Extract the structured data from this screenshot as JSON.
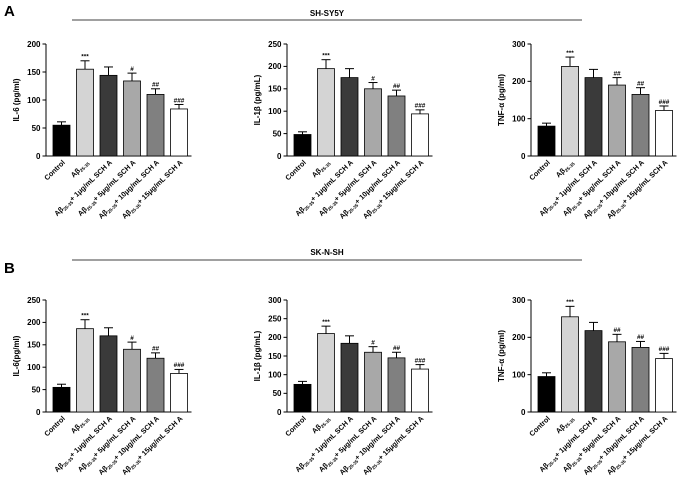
{
  "panel_labels": [
    "A",
    "B"
  ],
  "group_titles": [
    "SH-SY5Y",
    "SK-N-SH"
  ],
  "category_parts": [
    {
      "main": "Control",
      "sub": "",
      "tail": ""
    },
    {
      "main": "Aβ",
      "sub": "25-35",
      "tail": ""
    },
    {
      "main": "Aβ",
      "sub": "25-35",
      "tail": "+ 1μg/mL SCH A"
    },
    {
      "main": "Aβ",
      "sub": "25-35",
      "tail": "+ 5μg/mL SCH A"
    },
    {
      "main": "Aβ",
      "sub": "25-35",
      "tail": "+ 10μg/mL SCH A"
    },
    {
      "main": "Aβ",
      "sub": "25-35",
      "tail": "+ 15μg/mL SCH A"
    }
  ],
  "colors": {
    "bars": [
      "#000000",
      "#d4d4d4",
      "#3a3a3a",
      "#a8a8a8",
      "#808080",
      "#ffffff"
    ],
    "axis": "#000000",
    "bar_stroke": "#000000"
  },
  "chart_data": [
    {
      "type": "bar",
      "group": 0,
      "categories": [
        "Control",
        "Aβ25-35",
        "Aβ25-35+ 1μg/mL SCH A",
        "Aβ25-35+ 5μg/mL SCH A",
        "Aβ25-35+ 10μg/mL SCH A",
        "Aβ25-35+ 15μg/mL SCH A"
      ],
      "values": [
        55,
        155,
        144,
        134,
        110,
        84
      ],
      "errors": [
        6,
        15,
        15,
        14,
        10,
        8
      ],
      "significance": [
        "",
        "***",
        "",
        "#",
        "##",
        "###"
      ],
      "ylabel": "IL-6 (pg/ml)",
      "ylim": [
        0,
        200
      ],
      "yticks": [
        0,
        50,
        100,
        150,
        200
      ],
      "ytick_labels": [
        "0",
        "50",
        "100",
        "150",
        "200"
      ]
    },
    {
      "type": "bar",
      "group": 0,
      "categories": [
        "Control",
        "Aβ25-35",
        "Aβ25-35+ 1μg/mL SCH A",
        "Aβ25-35+ 5μg/mL SCH A",
        "Aβ25-35+ 10μg/mL SCH A",
        "Aβ25-35+ 15μg/mL SCH A"
      ],
      "values": [
        48,
        195,
        175,
        150,
        134,
        94
      ],
      "errors": [
        6,
        20,
        20,
        14,
        13,
        9
      ],
      "significance": [
        "",
        "***",
        "",
        "#",
        "##",
        "###"
      ],
      "ylabel": "IL-1β (pg/mL)",
      "ylim": [
        0,
        250
      ],
      "yticks": [
        0,
        50,
        100,
        150,
        200,
        250
      ],
      "ytick_labels": [
        "0",
        "50",
        "100",
        "150",
        "200",
        "250"
      ]
    },
    {
      "type": "bar",
      "group": 0,
      "categories": [
        "Control",
        "Aβ25-35",
        "Aβ25-35+ 1μg/mL SCH A",
        "Aβ25-35+ 5μg/mL SCH A",
        "Aβ25-35+ 10μg/mL SCH A",
        "Aβ25-35+ 15μg/mL SCH A"
      ],
      "values": [
        80,
        240,
        210,
        190,
        165,
        122
      ],
      "errors": [
        8,
        25,
        22,
        20,
        18,
        12
      ],
      "significance": [
        "",
        "***",
        "",
        "##",
        "##",
        "###"
      ],
      "ylabel": "TNF-α (pg/ml)",
      "ylim": [
        0,
        300
      ],
      "yticks": [
        0,
        100,
        200,
        300
      ],
      "ytick_labels": [
        "0",
        "100",
        "200",
        "300"
      ]
    },
    {
      "type": "bar",
      "group": 1,
      "categories": [
        "Control",
        "Aβ25-35",
        "Aβ25-35+ 1μg/mL SCH A",
        "Aβ25-35+ 5μg/mL SCH A",
        "Aβ25-35+ 10μg/mL SCH A",
        "Aβ25-35+ 15μg/mL SCH A"
      ],
      "values": [
        55,
        186,
        170,
        140,
        120,
        86
      ],
      "errors": [
        7,
        20,
        18,
        16,
        12,
        9
      ],
      "significance": [
        "",
        "***",
        "",
        "#",
        "##",
        "###"
      ],
      "ylabel": "IL-6(pg/ml)",
      "ylim": [
        0,
        250
      ],
      "yticks": [
        0,
        50,
        100,
        150,
        200,
        250
      ],
      "ytick_labels": [
        "0",
        "50",
        "100",
        "150",
        "200",
        "250"
      ]
    },
    {
      "type": "bar",
      "group": 1,
      "categories": [
        "Control",
        "Aβ25-35",
        "Aβ25-35+ 1μg/mL SCH A",
        "Aβ25-35+ 5μg/mL SCH A",
        "Aβ25-35+ 10μg/mL SCH A",
        "Aβ25-35+ 15μg/mL SCH A"
      ],
      "values": [
        74,
        210,
        184,
        160,
        145,
        115
      ],
      "errors": [
        8,
        20,
        20,
        15,
        15,
        12
      ],
      "significance": [
        "",
        "***",
        "",
        "#",
        "##",
        "###"
      ],
      "ylabel": "IL-1β (pg/mL)",
      "ylim": [
        0,
        300
      ],
      "yticks": [
        0,
        50,
        100,
        150,
        200,
        250,
        300
      ],
      "ytick_labels": [
        "0",
        "50",
        "100",
        "150",
        "200",
        "250",
        "300"
      ]
    },
    {
      "type": "bar",
      "group": 1,
      "categories": [
        "Control",
        "Aβ25-35",
        "Aβ25-35+ 1μg/mL SCH A",
        "Aβ25-35+ 5μg/mL SCH A",
        "Aβ25-35+ 10μg/mL SCH A",
        "Aβ25-35+ 15μg/mL SCH A"
      ],
      "values": [
        95,
        255,
        218,
        188,
        173,
        143
      ],
      "errors": [
        10,
        28,
        22,
        20,
        16,
        14
      ],
      "significance": [
        "",
        "***",
        "",
        "##",
        "##",
        "###"
      ],
      "ylabel": "TNF-α (pg/ml)",
      "ylim": [
        0,
        300
      ],
      "yticks": [
        0,
        100,
        200,
        300
      ],
      "ytick_labels": [
        "0",
        "100",
        "200",
        "300"
      ]
    }
  ]
}
